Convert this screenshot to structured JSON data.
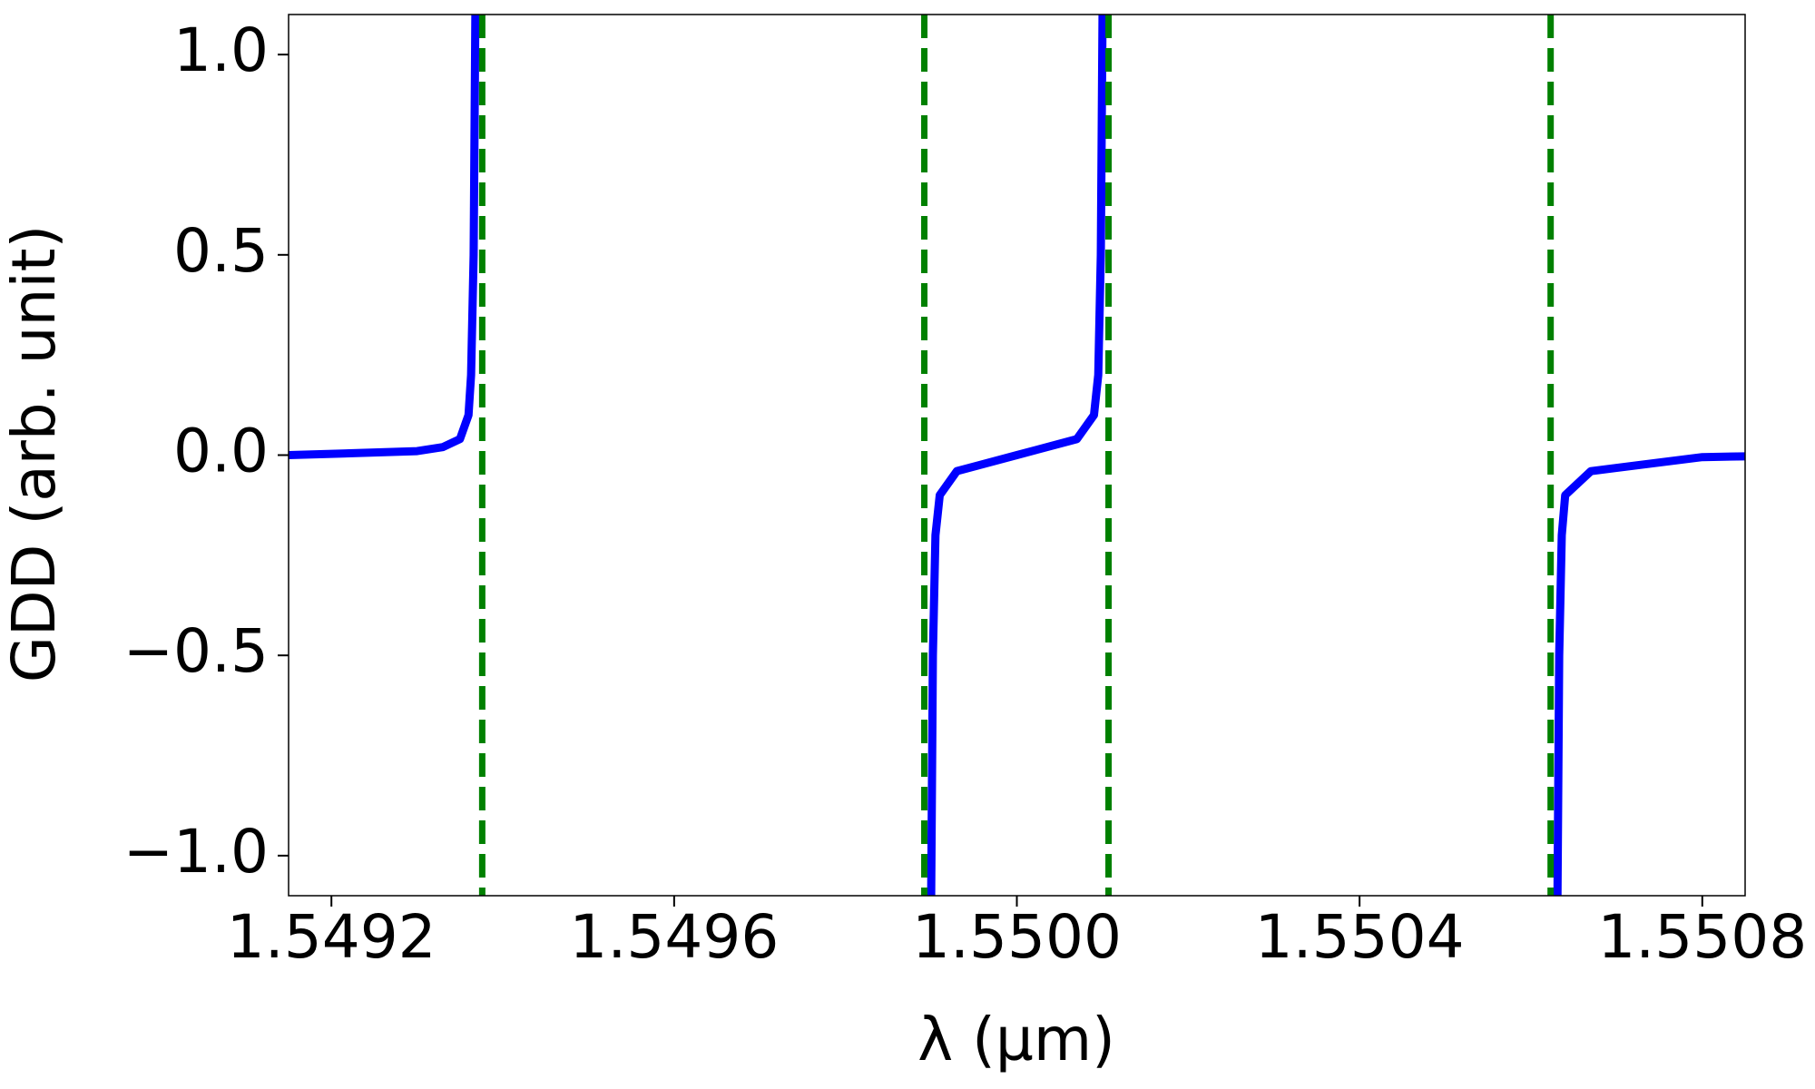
{
  "chart_data": {
    "type": "line",
    "x_label": "λ (µm)",
    "y_label": "GDD (arb. unit)",
    "x": [
      1.54915,
      1.5492,
      1.5493,
      1.54933,
      1.54935,
      1.54936,
      1.549363,
      1.549366,
      1.549368,
      null,
      1.5499,
      1.549902,
      1.549905,
      1.54991,
      1.54993,
      1.55,
      1.55007,
      1.55009,
      1.550095,
      1.550098,
      1.5501,
      null,
      1.550631,
      1.550633,
      1.550636,
      1.55064,
      1.55067,
      1.5508,
      1.55085
    ],
    "series": [
      {
        "name": "GDD",
        "color": "#0000ff",
        "values": [
          0.0,
          0.003,
          0.01,
          0.02,
          0.04,
          0.1,
          0.2,
          0.5,
          1.1,
          null,
          -1.1,
          -0.5,
          -0.2,
          -0.1,
          -0.04,
          0.0,
          0.04,
          0.1,
          0.2,
          0.5,
          1.1,
          null,
          -1.1,
          -0.5,
          -0.2,
          -0.1,
          -0.04,
          -0.005,
          -0.003
        ]
      }
    ],
    "vlines": {
      "x": [
        1.549376,
        1.549892,
        1.550107,
        1.550623
      ],
      "color": "#008000",
      "dash": true
    },
    "xlim": [
      1.54915,
      1.55085
    ],
    "ylim": [
      -1.1,
      1.1
    ],
    "xticks": [
      1.5492,
      1.5496,
      {
        "value": 1.55,
        "label": "1.5500"
      },
      1.5504,
      1.5508
    ],
    "yticks": [
      {
        "value": 1.0,
        "label": "1.0"
      },
      0.5,
      {
        "value": 0.0,
        "label": "0.0"
      },
      {
        "value": -0.5,
        "label": "−0.5"
      },
      {
        "value": -1.0,
        "label": "−1.0"
      }
    ]
  }
}
